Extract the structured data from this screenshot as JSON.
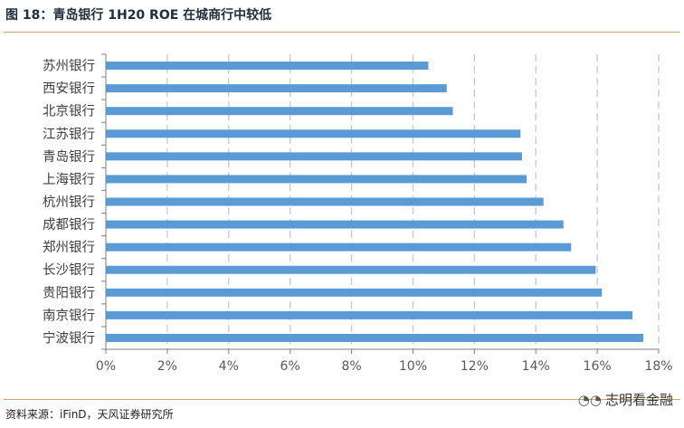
{
  "header": {
    "title": "图 18：青岛银行 1H20 ROE 在城商行中较低"
  },
  "footer": {
    "source": "资料来源：iFinD，天风证券研究所",
    "watermark": "志明看金融",
    "watermark_icon": "wechat-icon"
  },
  "colors": {
    "bar": "#5b9bd5",
    "grid": "#c8c8c8",
    "axis": "#7f7f7f",
    "rule": "#c9a96a"
  },
  "chart_data": {
    "type": "bar",
    "orientation": "horizontal",
    "categories": [
      "苏州银行",
      "西安银行",
      "北京银行",
      "江苏银行",
      "青岛银行",
      "上海银行",
      "杭州银行",
      "成都银行",
      "郑州银行",
      "长沙银行",
      "贵阳银行",
      "南京银行",
      "宁波银行"
    ],
    "values": [
      10.5,
      11.1,
      11.3,
      13.5,
      13.55,
      13.7,
      14.25,
      14.9,
      15.15,
      15.95,
      16.15,
      17.15,
      17.5
    ],
    "unit": "%",
    "xlim": [
      0,
      18
    ],
    "xticks": [
      "0%",
      "2%",
      "4%",
      "6%",
      "8%",
      "10%",
      "12%",
      "14%",
      "16%",
      "18%"
    ],
    "grid": "vertical dashed",
    "legend": "none"
  }
}
